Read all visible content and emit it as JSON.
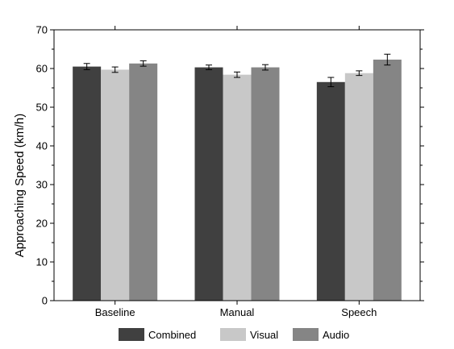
{
  "chart_data": {
    "type": "bar",
    "title": "",
    "xlabel": "",
    "ylabel": "Approaching Speed (km/h)",
    "ylim": [
      0,
      70
    ],
    "yticks": [
      0,
      10,
      20,
      30,
      40,
      50,
      60,
      70
    ],
    "categories": [
      "Baseline",
      "Manual",
      "Speech"
    ],
    "series": [
      {
        "name": "Combined",
        "color": "#404040",
        "values": [
          60.5,
          60.3,
          56.5
        ],
        "errors": [
          0.8,
          0.6,
          1.2
        ]
      },
      {
        "name": "Visual",
        "color": "#c8c8c8",
        "values": [
          59.7,
          58.4,
          58.8
        ],
        "errors": [
          0.7,
          0.7,
          0.6
        ]
      },
      {
        "name": "Audio",
        "color": "#858585",
        "values": [
          61.3,
          60.3,
          62.3
        ],
        "errors": [
          0.7,
          0.7,
          1.4
        ]
      }
    ],
    "legend_position": "bottom",
    "grid": false
  }
}
